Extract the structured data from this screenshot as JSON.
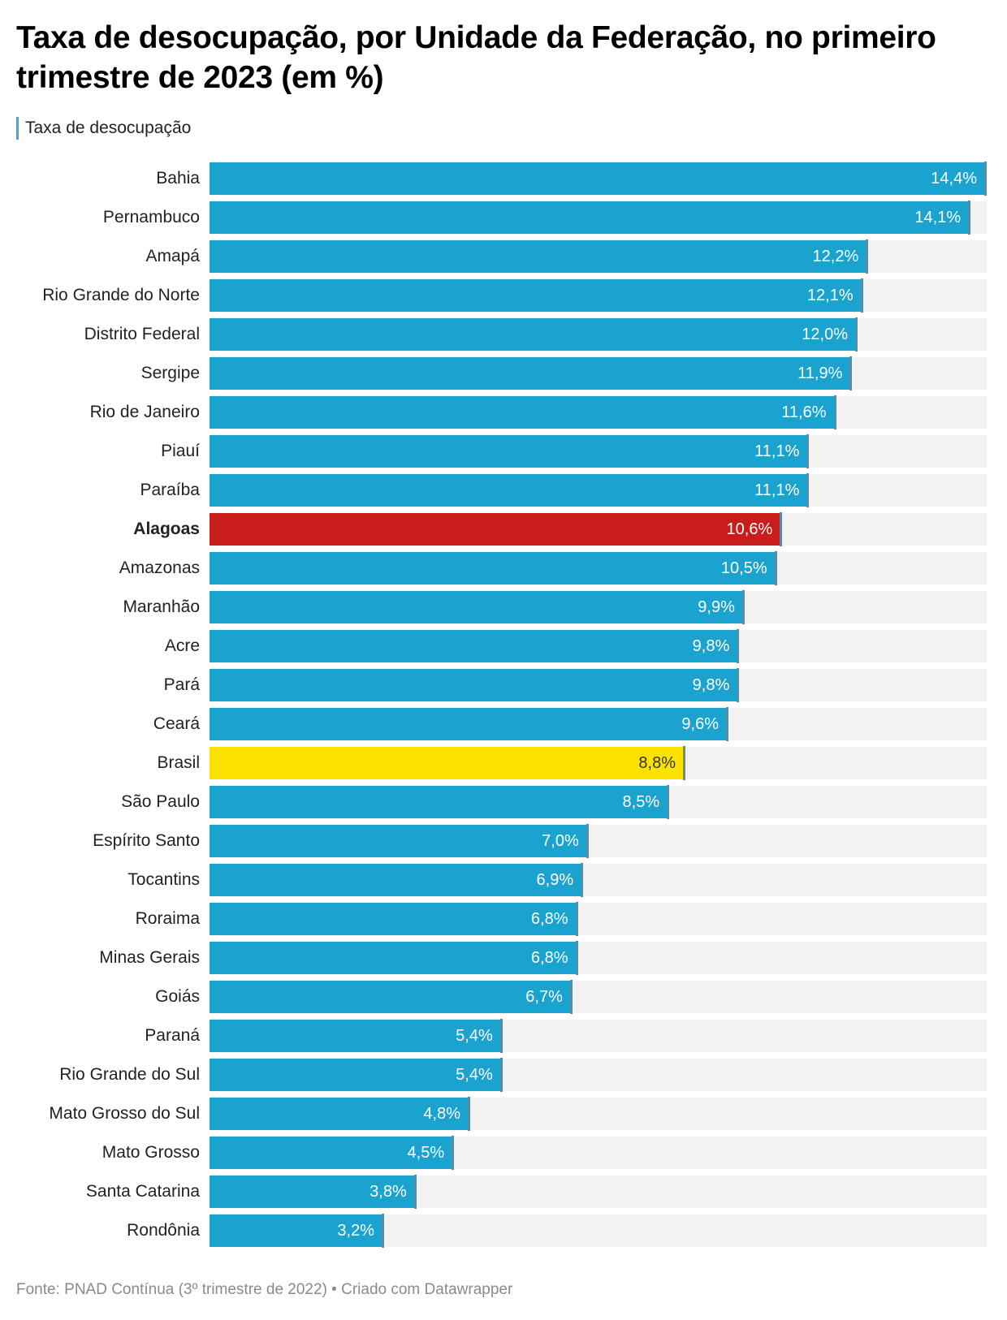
{
  "header": {
    "title": "Taxa de desocupação, por Unidade da Federação, no primeiro trimestre de 2023 (em %)"
  },
  "legend": {
    "label": "Taxa de desocupação"
  },
  "footer": {
    "text": "Fonte: PNAD Contínua (3º trimestre de 2022) • Criado com Datawrapper"
  },
  "colors": {
    "default_bar": "#1ba3cf",
    "highlight_bar": "#c71e1d",
    "reference_bar": "#fde200",
    "track": "#f2f2f2",
    "bar_end_marker": "#5e8aa3",
    "default_label": "#ffffff",
    "reference_label": "#333333"
  },
  "chart_data": {
    "type": "bar",
    "orientation": "horizontal",
    "title": "Taxa de desocupação, por Unidade da Federação, no primeiro trimestre de 2023 (em %)",
    "xlabel": "",
    "ylabel": "",
    "xlim": [
      0,
      14.4
    ],
    "grid": false,
    "legend_position": "top-left",
    "series": [
      {
        "name": "Taxa de desocupação",
        "points": [
          {
            "category": "Bahia",
            "value": 14.4,
            "label": "14,4%",
            "style": "default"
          },
          {
            "category": "Pernambuco",
            "value": 14.1,
            "label": "14,1%",
            "style": "default"
          },
          {
            "category": "Amapá",
            "value": 12.2,
            "label": "12,2%",
            "style": "default"
          },
          {
            "category": "Rio Grande do Norte",
            "value": 12.1,
            "label": "12,1%",
            "style": "default"
          },
          {
            "category": "Distrito Federal",
            "value": 12.0,
            "label": "12,0%",
            "style": "default"
          },
          {
            "category": "Sergipe",
            "value": 11.9,
            "label": "11,9%",
            "style": "default"
          },
          {
            "category": "Rio de Janeiro",
            "value": 11.6,
            "label": "11,6%",
            "style": "default"
          },
          {
            "category": "Piauí",
            "value": 11.1,
            "label": "11,1%",
            "style": "default"
          },
          {
            "category": "Paraíba",
            "value": 11.1,
            "label": "11,1%",
            "style": "default"
          },
          {
            "category": "Alagoas",
            "value": 10.6,
            "label": "10,6%",
            "style": "highlight"
          },
          {
            "category": "Amazonas",
            "value": 10.5,
            "label": "10,5%",
            "style": "default"
          },
          {
            "category": "Maranhão",
            "value": 9.9,
            "label": "9,9%",
            "style": "default"
          },
          {
            "category": "Acre",
            "value": 9.8,
            "label": "9,8%",
            "style": "default"
          },
          {
            "category": "Pará",
            "value": 9.8,
            "label": "9,8%",
            "style": "default"
          },
          {
            "category": "Ceará",
            "value": 9.6,
            "label": "9,6%",
            "style": "default"
          },
          {
            "category": "Brasil",
            "value": 8.8,
            "label": "8,8%",
            "style": "reference"
          },
          {
            "category": "São Paulo",
            "value": 8.5,
            "label": "8,5%",
            "style": "default"
          },
          {
            "category": "Espírito Santo",
            "value": 7.0,
            "label": "7,0%",
            "style": "default"
          },
          {
            "category": "Tocantins",
            "value": 6.9,
            "label": "6,9%",
            "style": "default"
          },
          {
            "category": "Roraima",
            "value": 6.8,
            "label": "6,8%",
            "style": "default"
          },
          {
            "category": "Minas Gerais",
            "value": 6.8,
            "label": "6,8%",
            "style": "default"
          },
          {
            "category": "Goiás",
            "value": 6.7,
            "label": "6,7%",
            "style": "default"
          },
          {
            "category": "Paraná",
            "value": 5.4,
            "label": "5,4%",
            "style": "default"
          },
          {
            "category": "Rio Grande do Sul",
            "value": 5.4,
            "label": "5,4%",
            "style": "default"
          },
          {
            "category": "Mato Grosso do Sul",
            "value": 4.8,
            "label": "4,8%",
            "style": "default"
          },
          {
            "category": "Mato Grosso",
            "value": 4.5,
            "label": "4,5%",
            "style": "default"
          },
          {
            "category": "Santa Catarina",
            "value": 3.8,
            "label": "3,8%",
            "style": "default"
          },
          {
            "category": "Rondônia",
            "value": 3.2,
            "label": "3,2%",
            "style": "default"
          }
        ]
      }
    ]
  }
}
